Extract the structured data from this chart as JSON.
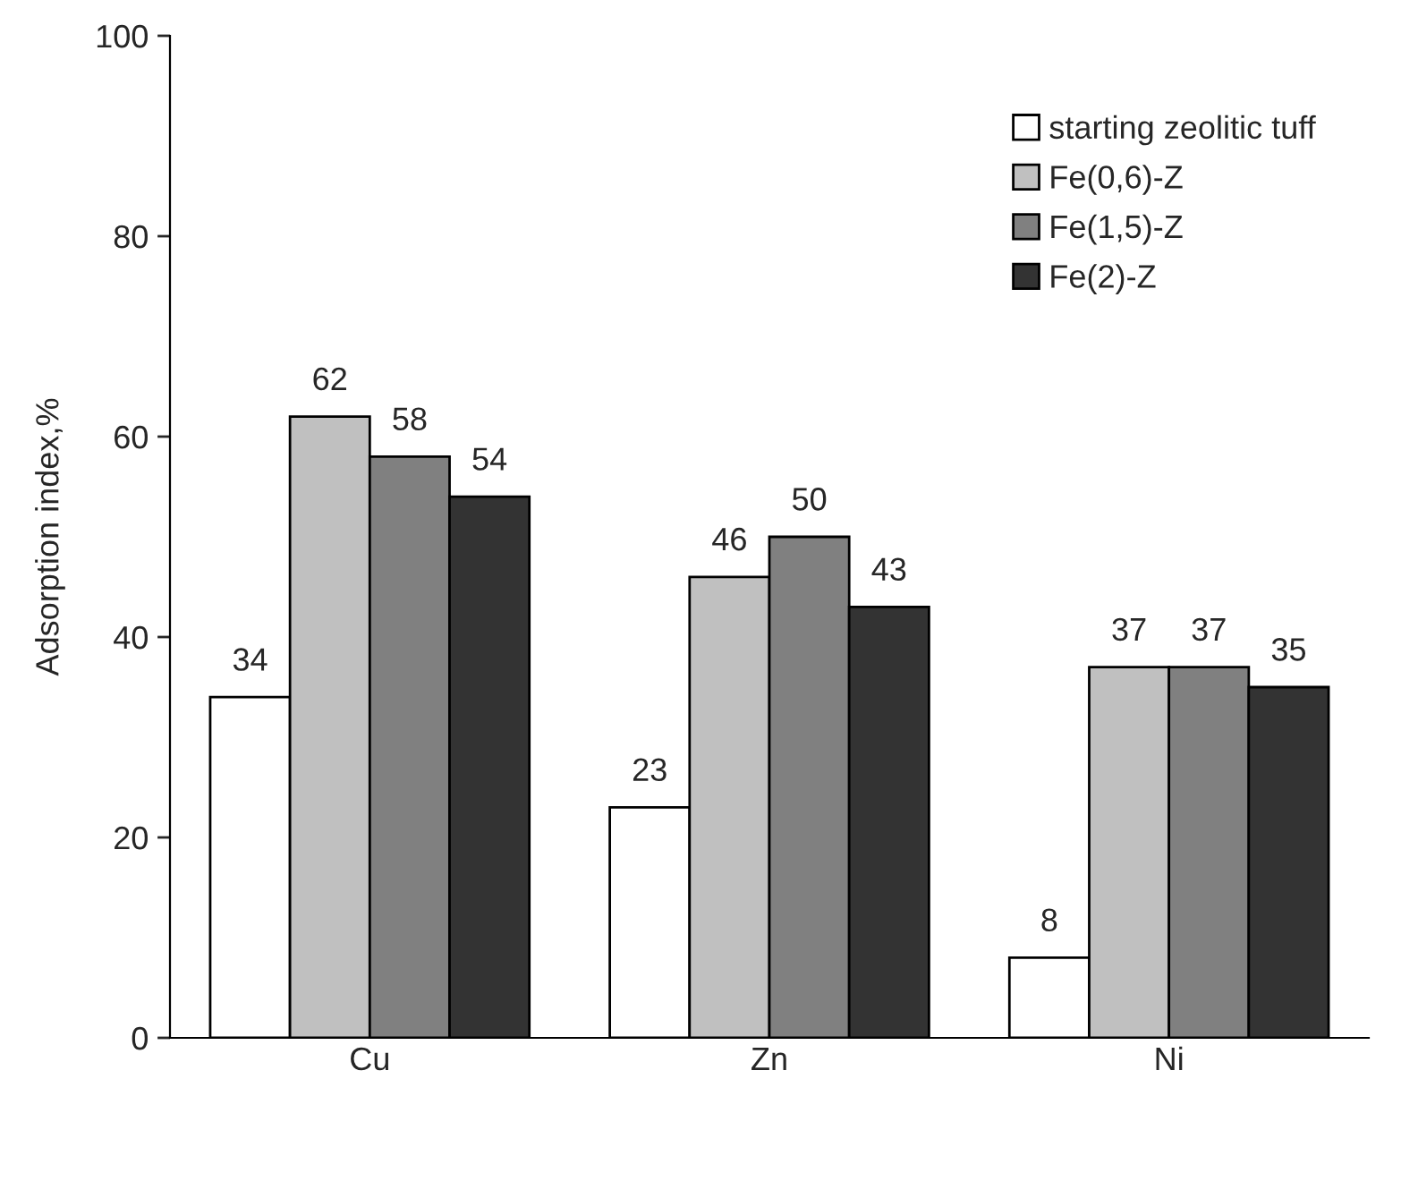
{
  "chart_data": {
    "type": "bar",
    "ylabel": "Adsorption index,%",
    "categories": [
      "Cu",
      "Zn",
      "Ni"
    ],
    "series": [
      {
        "name": "starting zeolitic tuff",
        "color": "#ffffff",
        "values": [
          34,
          23,
          8
        ]
      },
      {
        "name": "Fe(0,6)-Z",
        "color": "#c0c0c0",
        "values": [
          62,
          46,
          37
        ]
      },
      {
        "name": "Fe(1,5)-Z",
        "color": "#808080",
        "values": [
          58,
          50,
          37
        ]
      },
      {
        "name": "Fe(2)-Z",
        "color": "#333333",
        "values": [
          54,
          43,
          35
        ]
      }
    ],
    "ylim": [
      0,
      100
    ],
    "yticks": [
      0,
      20,
      40,
      60,
      80,
      100
    ],
    "data_labels": true,
    "legend": "top right",
    "grid": false
  }
}
